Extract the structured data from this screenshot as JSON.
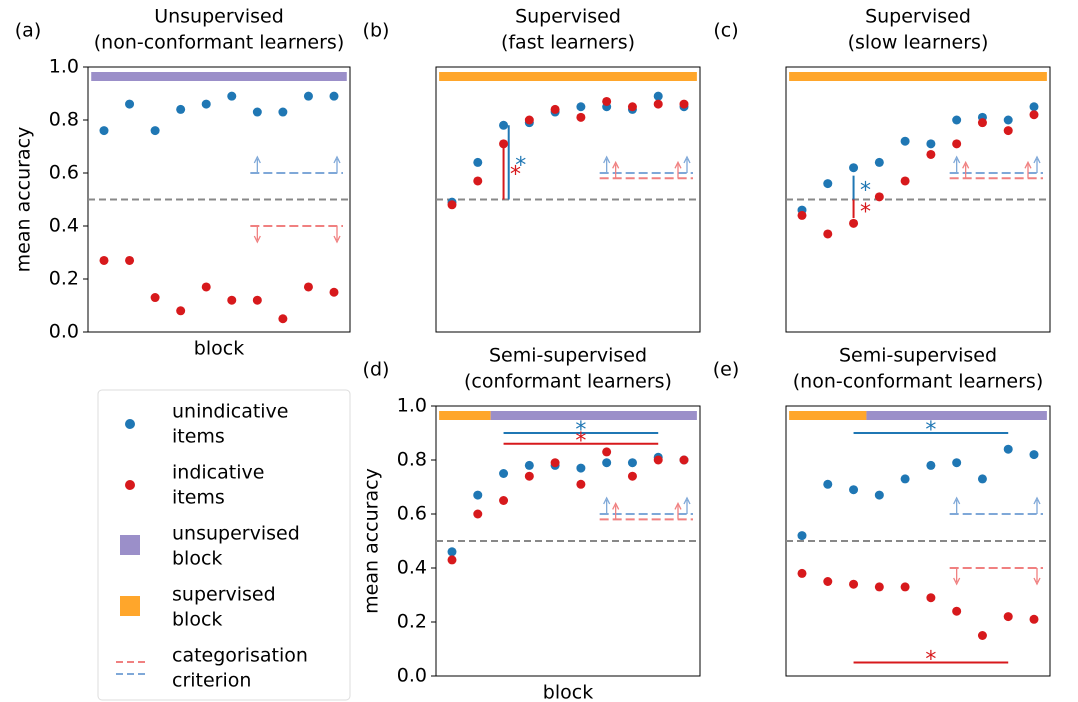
{
  "chart_data": [
    {
      "type": "scatter",
      "label": "(a)",
      "title": [
        "Unsupervised",
        "(non-conformant learners)"
      ],
      "xlabel": "block",
      "ylabel": "mean accuracy",
      "ylim": [
        0,
        1
      ],
      "yticks": [
        {
          "value": 0,
          "label": "0.0"
        },
        0.2,
        0.4,
        0.6,
        0.8,
        {
          "value": 1,
          "label": "1.0"
        }
      ],
      "chance": 0.5,
      "phases": [
        {
          "color": "#9b8fc9",
          "blocks": 10
        }
      ],
      "series": [
        {
          "color": "#1f77b4",
          "values": [
            0.76,
            0.86,
            0.76,
            0.84,
            0.86,
            0.89,
            0.83,
            0.83,
            0.89,
            0.89
          ]
        },
        {
          "color": "#d7191c",
          "values": [
            0.27,
            0.27,
            0.13,
            0.08,
            0.17,
            0.12,
            0.12,
            0.05,
            0.17,
            0.15
          ]
        }
      ],
      "criteria": [
        {
          "color": "#7fa8d8",
          "value": 0.6,
          "direction": "up"
        },
        {
          "color": "#f08080",
          "value": 0.4,
          "direction": "down"
        }
      ],
      "annotations": []
    },
    {
      "type": "scatter",
      "label": "(b)",
      "title": [
        "Supervised",
        "(fast learners)"
      ],
      "ylim": [
        0,
        1
      ],
      "chance": 0.5,
      "phases": [
        {
          "color": "#ffa62b",
          "blocks": 10
        }
      ],
      "series": [
        {
          "color": "#1f77b4",
          "values": [
            0.49,
            0.64,
            0.78,
            0.79,
            0.83,
            0.85,
            0.85,
            0.84,
            0.89,
            0.85
          ]
        },
        {
          "color": "#d7191c",
          "values": [
            0.48,
            0.57,
            0.71,
            0.8,
            0.84,
            0.81,
            0.87,
            0.85,
            0.86,
            0.86
          ]
        }
      ],
      "criteria": [
        {
          "color": "#7fa8d8",
          "value": 0.6,
          "direction": "up"
        },
        {
          "color": "#f08080",
          "value": 0.58,
          "direction": "up"
        }
      ],
      "annotations": [
        {
          "color": "#1f77b4",
          "x": [
            2.2,
            2.2
          ],
          "y": [
            0.5,
            0.78
          ],
          "label": "*"
        },
        {
          "color": "#d7191c",
          "x": [
            2.0,
            2.0
          ],
          "y": [
            0.5,
            0.71
          ],
          "label": "*"
        }
      ]
    },
    {
      "type": "scatter",
      "label": "(c)",
      "title": [
        "Supervised",
        "(slow learners)"
      ],
      "ylim": [
        0,
        1
      ],
      "chance": 0.5,
      "phases": [
        {
          "color": "#ffa62b",
          "blocks": 10
        }
      ],
      "series": [
        {
          "color": "#1f77b4",
          "values": [
            0.46,
            0.56,
            0.62,
            0.64,
            0.72,
            0.71,
            0.8,
            0.81,
            0.8,
            0.85
          ]
        },
        {
          "color": "#d7191c",
          "values": [
            0.44,
            0.37,
            0.41,
            0.51,
            0.57,
            0.67,
            0.71,
            0.79,
            0.76,
            0.82
          ]
        }
      ],
      "criteria": [
        {
          "color": "#7fa8d8",
          "value": 0.6,
          "direction": "up"
        },
        {
          "color": "#f08080",
          "value": 0.58,
          "direction": "up"
        }
      ],
      "annotations": [
        {
          "color": "#1f77b4",
          "x": [
            2.0,
            2.0
          ],
          "y": [
            0.5,
            0.59
          ],
          "label": "*"
        },
        {
          "color": "#d7191c",
          "x": [
            2.0,
            2.0
          ],
          "y": [
            0.5,
            0.43
          ],
          "label": "*"
        }
      ]
    },
    {
      "type": "scatter",
      "label": "(d)",
      "title": [
        "Semi-supervised",
        "(conformant learners)"
      ],
      "xlabel": "block",
      "ylabel": "mean accuracy",
      "ylim": [
        0,
        1
      ],
      "yticks": [
        {
          "value": 0,
          "label": "0.0"
        },
        0.2,
        0.4,
        0.6,
        0.8,
        {
          "value": 1,
          "label": "1.0"
        }
      ],
      "chance": 0.5,
      "phases": [
        {
          "color": "#ffa62b",
          "blocks": 2
        },
        {
          "color": "#9b8fc9",
          "blocks": 8
        }
      ],
      "series": [
        {
          "color": "#1f77b4",
          "values": [
            0.46,
            0.67,
            0.75,
            0.78,
            0.78,
            0.77,
            0.79,
            0.79,
            0.81,
            0.8
          ]
        },
        {
          "color": "#d7191c",
          "values": [
            0.43,
            0.6,
            0.65,
            0.74,
            0.79,
            0.71,
            0.83,
            0.74,
            0.8,
            0.8
          ]
        }
      ],
      "criteria": [
        {
          "color": "#7fa8d8",
          "value": 0.6,
          "direction": "up"
        },
        {
          "color": "#f08080",
          "value": 0.58,
          "direction": "up"
        }
      ],
      "annotations": [
        {
          "color": "#1f77b4",
          "x": [
            2.0,
            8.0
          ],
          "y": [
            0.9,
            0.9
          ],
          "label": "*"
        },
        {
          "color": "#d7191c",
          "x": [
            2.0,
            8.0
          ],
          "y": [
            0.86,
            0.86
          ],
          "label": "*"
        }
      ]
    },
    {
      "type": "scatter",
      "label": "(e)",
      "title": [
        "Semi-supervised",
        "(non-conformant learners)"
      ],
      "ylim": [
        0,
        1
      ],
      "chance": 0.5,
      "phases": [
        {
          "color": "#ffa62b",
          "blocks": 3
        },
        {
          "color": "#9b8fc9",
          "blocks": 7
        }
      ],
      "series": [
        {
          "color": "#1f77b4",
          "values": [
            0.52,
            0.71,
            0.69,
            0.67,
            0.73,
            0.78,
            0.79,
            0.73,
            0.84,
            0.82
          ]
        },
        {
          "color": "#d7191c",
          "values": [
            0.38,
            0.35,
            0.34,
            0.33,
            0.33,
            0.29,
            0.24,
            0.15,
            0.22,
            0.21
          ]
        }
      ],
      "criteria": [
        {
          "color": "#7fa8d8",
          "value": 0.6,
          "direction": "up"
        },
        {
          "color": "#f08080",
          "value": 0.4,
          "direction": "down"
        }
      ],
      "annotations": [
        {
          "color": "#1f77b4",
          "x": [
            2.0,
            8.0
          ],
          "y": [
            0.9,
            0.9
          ],
          "label": "*"
        },
        {
          "color": "#d7191c",
          "x": [
            2.0,
            8.0
          ],
          "y": [
            0.05,
            0.05
          ],
          "label": "*"
        }
      ]
    }
  ],
  "legend": {
    "entries": [
      {
        "marker": "dot",
        "color": "#1f77b4",
        "label": [
          "unindicative",
          "items"
        ]
      },
      {
        "marker": "dot",
        "color": "#d7191c",
        "label": [
          "indicative",
          "items"
        ]
      },
      {
        "marker": "square",
        "color": "#9b8fc9",
        "label": [
          "unsupervised",
          "block"
        ]
      },
      {
        "marker": "square",
        "color": "#ffa62b",
        "label": [
          "supervised",
          "block"
        ]
      },
      {
        "marker": "dashes",
        "color": [
          "#f08080",
          "#7fa8d8"
        ],
        "label": [
          "categorisation",
          "criterion"
        ]
      }
    ]
  }
}
